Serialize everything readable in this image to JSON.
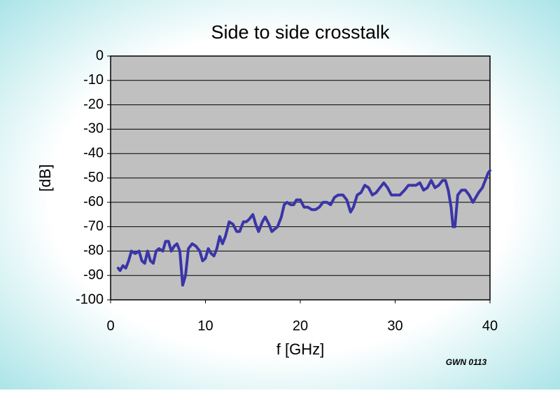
{
  "chart_data": {
    "type": "line",
    "title": "Side to side crosstalk",
    "x_label": "f [GHz]",
    "y_label": "[dB]",
    "annotation": "GWN 0113",
    "xlim": [
      0,
      40
    ],
    "xticks": [
      0,
      10,
      20,
      30,
      40
    ],
    "ylim": [
      -100,
      0
    ],
    "yticks": [
      0,
      -10,
      -20,
      -30,
      -40,
      -50,
      -60,
      -70,
      -80,
      -90,
      -100
    ],
    "grid": true,
    "series": [
      {
        "name": "crosstalk",
        "color": "#3b35a8",
        "x": [
          0.8,
          1.0,
          1.3,
          1.6,
          1.9,
          2.2,
          2.6,
          3.0,
          3.3,
          3.6,
          3.9,
          4.2,
          4.5,
          4.8,
          5.1,
          5.5,
          5.8,
          6.1,
          6.4,
          6.7,
          7.0,
          7.3,
          7.6,
          7.9,
          8.2,
          8.6,
          9.0,
          9.4,
          9.7,
          10.0,
          10.3,
          10.6,
          10.9,
          11.2,
          11.5,
          11.8,
          12.1,
          12.5,
          12.9,
          13.3,
          13.6,
          14.0,
          14.3,
          14.6,
          15.0,
          15.3,
          15.6,
          16.0,
          16.3,
          16.7,
          17.0,
          17.3,
          17.6,
          18.0,
          18.3,
          18.6,
          19.0,
          19.3,
          19.6,
          20.0,
          20.4,
          20.8,
          21.2,
          21.6,
          22.0,
          22.4,
          22.8,
          23.2,
          23.6,
          24.0,
          24.5,
          24.9,
          25.3,
          25.6,
          26.0,
          26.4,
          26.8,
          27.2,
          27.6,
          28.0,
          28.4,
          28.8,
          29.2,
          29.6,
          30.0,
          30.5,
          31.0,
          31.4,
          31.8,
          32.2,
          32.6,
          33.0,
          33.4,
          33.8,
          34.2,
          34.6,
          35.0,
          35.3,
          35.6,
          35.9,
          36.1,
          36.3,
          36.6,
          37.0,
          37.4,
          37.8,
          38.2,
          38.5,
          38.8,
          39.2,
          39.5,
          39.8,
          40.0
        ],
        "values": [
          -87,
          -88,
          -86,
          -87,
          -84,
          -80,
          -81,
          -80,
          -84,
          -85,
          -80,
          -84,
          -85,
          -80,
          -79,
          -80,
          -76,
          -76,
          -80,
          -78,
          -77,
          -80,
          -94,
          -90,
          -79,
          -77,
          -78,
          -80,
          -84,
          -83,
          -79,
          -81,
          -82,
          -79,
          -74,
          -77,
          -74,
          -68,
          -69,
          -72,
          -72,
          -68,
          -68,
          -67,
          -65,
          -69,
          -72,
          -68,
          -66,
          -69,
          -72,
          -71,
          -70,
          -66,
          -61,
          -60,
          -61,
          -61,
          -59,
          -59,
          -62,
          -62,
          -63,
          -63,
          -62,
          -60,
          -60,
          -61,
          -58,
          -57,
          -57,
          -59,
          -64,
          -62,
          -57,
          -56,
          -53,
          -54,
          -57,
          -56,
          -54,
          -52,
          -54,
          -57,
          -57,
          -57,
          -55,
          -53,
          -53,
          -53,
          -52,
          -55,
          -54,
          -51,
          -54,
          -53,
          -51,
          -51,
          -55,
          -62,
          -70,
          -70,
          -57,
          -55,
          -55,
          -57,
          -60,
          -58,
          -56,
          -54,
          -51,
          -48,
          -47
        ]
      }
    ]
  }
}
